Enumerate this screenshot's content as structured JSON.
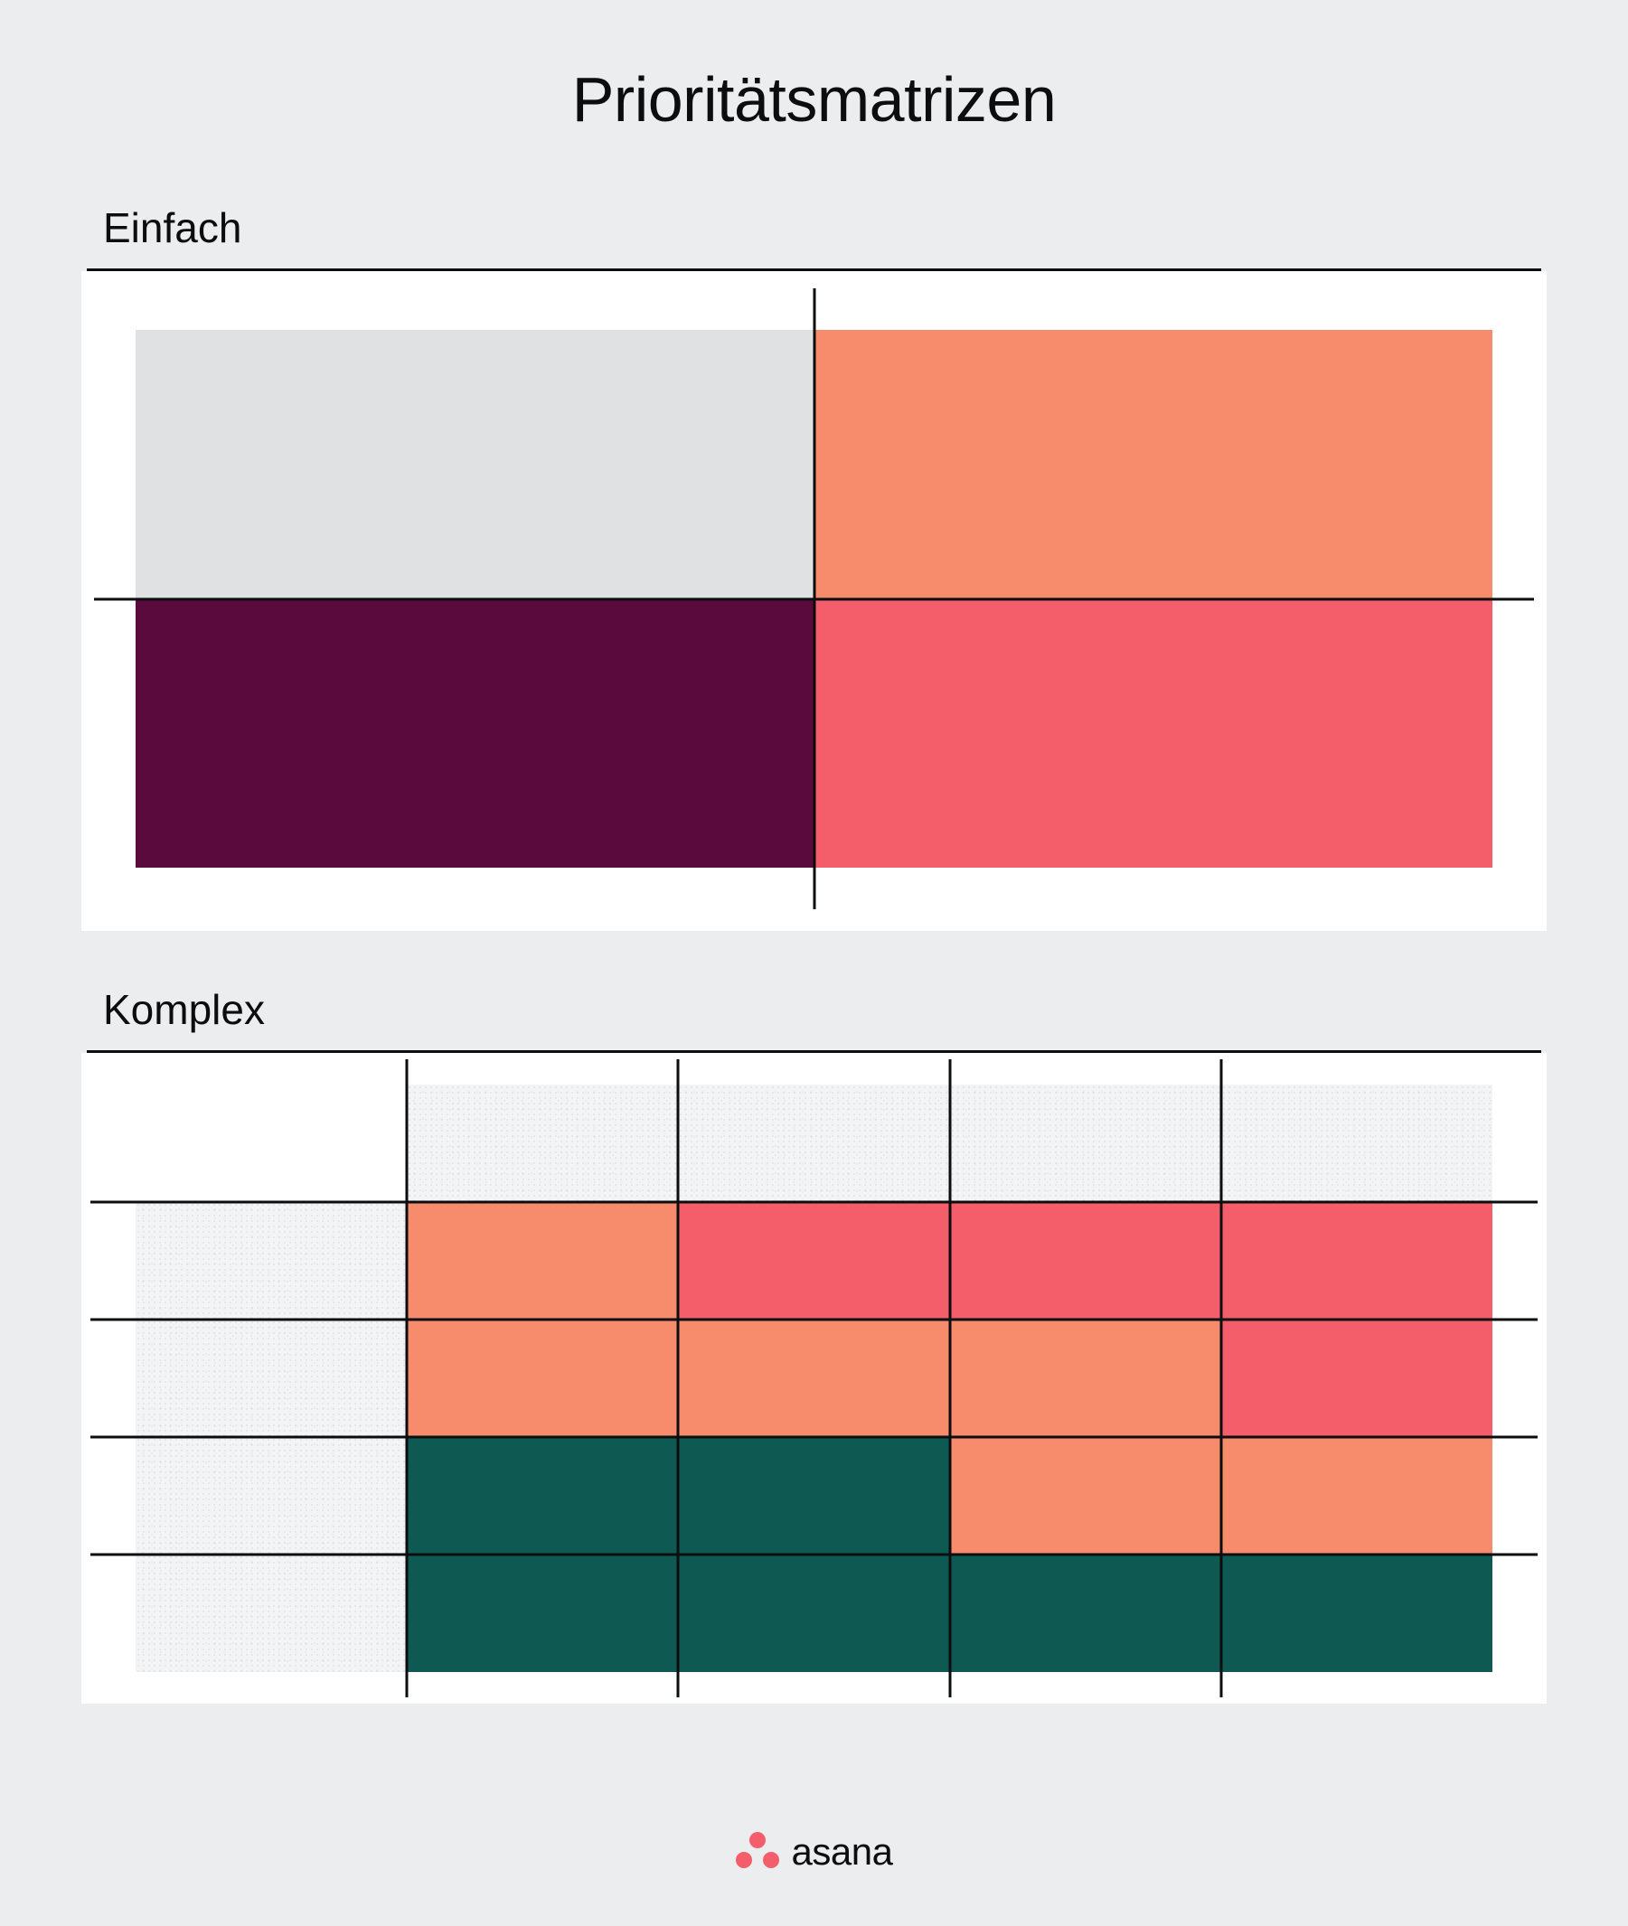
{
  "title": "Prioritätsmatrizen",
  "colors": {
    "page_bg": "#ecedee",
    "panel_bg": "#ffffff",
    "line": "#0b0d0e",
    "text": "#0b0d0e",
    "light_gray": "#e0e1e3",
    "salmon": "#f78c6c",
    "coral": "#f45d6a",
    "maroon": "#5a0a3c",
    "teal": "#0e5a52",
    "brand": "#f45d6a"
  },
  "simple": {
    "label": "Einfach",
    "rows": 2,
    "cols": 2,
    "quadrant_colors": [
      [
        "light_gray",
        "salmon"
      ],
      [
        "maroon",
        "coral"
      ]
    ]
  },
  "complex": {
    "label": "Komplex",
    "rows": 5,
    "cols": 5,
    "cell_colors": [
      [
        "blank",
        "texture",
        "texture",
        "texture",
        "texture"
      ],
      [
        "texture",
        "salmon",
        "coral",
        "coral",
        "coral"
      ],
      [
        "texture",
        "salmon",
        "salmon",
        "salmon",
        "coral"
      ],
      [
        "texture",
        "teal",
        "teal",
        "salmon",
        "salmon"
      ],
      [
        "texture",
        "teal",
        "teal",
        "teal",
        "teal"
      ]
    ],
    "v_lines_at_cols": [
      1,
      2,
      3,
      4
    ],
    "h_lines_at_rows": [
      1,
      2,
      3,
      4
    ]
  },
  "brand": {
    "name": "asana"
  }
}
